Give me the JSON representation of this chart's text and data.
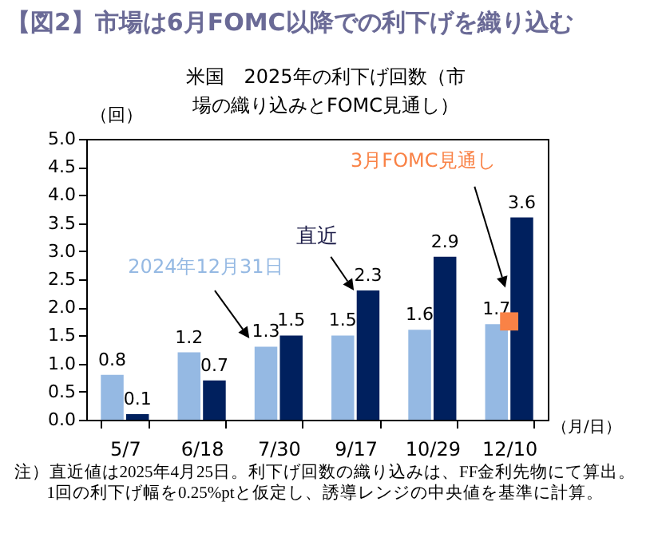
{
  "chart_data": {
    "type": "bar",
    "title": "【図2】市場は6月FOMC以降での利下げを織り込む",
    "subtitle": "米国　2025年の利下げ回数（市場の織り込みとFOMC見通し）",
    "ylabel": "（回）",
    "xlabel": "（月/日）",
    "categories": [
      "5/7",
      "6/18",
      "7/30",
      "9/17",
      "10/29",
      "12/10"
    ],
    "series": [
      {
        "name": "2024年12月31日",
        "color": "#95b9e3",
        "values": [
          0.8,
          1.2,
          1.3,
          1.5,
          1.6,
          1.7
        ],
        "value_labels": [
          "0.8",
          "1.2",
          "1.3",
          "1.5",
          "1.6",
          "1.7"
        ]
      },
      {
        "name": "直近",
        "color": "#00205e",
        "values": [
          0.1,
          0.7,
          1.5,
          2.3,
          2.9,
          3.6
        ],
        "value_labels": [
          "0.1",
          "0.7",
          "1.5",
          "2.3",
          "2.9",
          "3.6"
        ]
      },
      {
        "name": "3月FOMC見通し",
        "type": "scatter",
        "marker": "square",
        "color": "#f98246",
        "x": [
          "12/10"
        ],
        "values": [
          1.75
        ]
      }
    ],
    "ylim": [
      0,
      5
    ],
    "yticks": [
      {
        "value": 0,
        "label": "0.0"
      },
      0.5,
      {
        "value": 1,
        "label": "1.0"
      },
      1.5,
      {
        "value": 2,
        "label": "2.0"
      },
      2.5,
      {
        "value": 3,
        "label": "3.0"
      },
      3.5,
      {
        "value": 4,
        "label": "4.0"
      },
      4.5,
      {
        "value": 5,
        "label": "5.0"
      }
    ],
    "grid": false,
    "legend": false,
    "annotations": [
      "注）直近値は2025年4月25日。利下げ回数の織り込みは、FF金利先物にて算出。",
      "1回の利下げ幅を0.25%ptと仮定し、誘導レンジの中央値を基準に計算。"
    ]
  }
}
